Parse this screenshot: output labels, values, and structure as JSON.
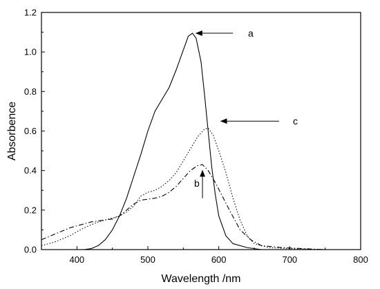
{
  "chart_data": {
    "type": "line",
    "xlabel": "Wavelength /nm",
    "ylabel": "Absorbence",
    "xlim": [
      350,
      800
    ],
    "ylim": [
      0.0,
      1.2
    ],
    "x_ticks": [
      400,
      500,
      600,
      700,
      800
    ],
    "x_tick_labels": [
      "400",
      "500",
      "600",
      "700",
      "800"
    ],
    "y_ticks": [
      0.0,
      0.2,
      0.4,
      0.6,
      0.8,
      1.0,
      1.2
    ],
    "y_tick_labels": [
      "0.0",
      "0.2",
      "0.4",
      "0.6",
      "0.8",
      "1.0",
      "1.2"
    ],
    "grid": false,
    "legend": "none",
    "series": [
      {
        "name": "a",
        "style": "solid",
        "color": "#000000",
        "points": [
          [
            410,
            0.0
          ],
          [
            420,
            0.005
          ],
          [
            430,
            0.02
          ],
          [
            440,
            0.05
          ],
          [
            450,
            0.1
          ],
          [
            460,
            0.17
          ],
          [
            470,
            0.26
          ],
          [
            480,
            0.37
          ],
          [
            490,
            0.48
          ],
          [
            500,
            0.6
          ],
          [
            510,
            0.7
          ],
          [
            520,
            0.76
          ],
          [
            530,
            0.82
          ],
          [
            540,
            0.91
          ],
          [
            550,
            1.01
          ],
          [
            557,
            1.08
          ],
          [
            563,
            1.095
          ],
          [
            568,
            1.07
          ],
          [
            575,
            0.95
          ],
          [
            580,
            0.78
          ],
          [
            585,
            0.6
          ],
          [
            590,
            0.42
          ],
          [
            595,
            0.28
          ],
          [
            600,
            0.17
          ],
          [
            610,
            0.07
          ],
          [
            620,
            0.03
          ],
          [
            640,
            0.01
          ],
          [
            660,
            0.0
          ]
        ]
      },
      {
        "name": "b",
        "style": "dashdot",
        "color": "#000000",
        "points": [
          [
            350,
            0.05
          ],
          [
            370,
            0.08
          ],
          [
            390,
            0.11
          ],
          [
            410,
            0.13
          ],
          [
            420,
            0.14
          ],
          [
            430,
            0.145
          ],
          [
            440,
            0.15
          ],
          [
            450,
            0.155
          ],
          [
            460,
            0.17
          ],
          [
            470,
            0.2
          ],
          [
            480,
            0.23
          ],
          [
            490,
            0.25
          ],
          [
            500,
            0.255
          ],
          [
            510,
            0.26
          ],
          [
            520,
            0.27
          ],
          [
            530,
            0.29
          ],
          [
            540,
            0.32
          ],
          [
            550,
            0.36
          ],
          [
            560,
            0.4
          ],
          [
            570,
            0.425
          ],
          [
            577,
            0.43
          ],
          [
            585,
            0.4
          ],
          [
            595,
            0.34
          ],
          [
            605,
            0.27
          ],
          [
            615,
            0.2
          ],
          [
            630,
            0.1
          ],
          [
            645,
            0.05
          ],
          [
            660,
            0.02
          ],
          [
            690,
            0.01
          ],
          [
            730,
            0.003
          ],
          [
            750,
            0.0
          ]
        ]
      },
      {
        "name": "c",
        "style": "dotted-dashed",
        "color": "#000000",
        "points": [
          [
            350,
            0.02
          ],
          [
            370,
            0.04
          ],
          [
            390,
            0.07
          ],
          [
            410,
            0.11
          ],
          [
            430,
            0.14
          ],
          [
            450,
            0.16
          ],
          [
            460,
            0.17
          ],
          [
            470,
            0.19
          ],
          [
            480,
            0.22
          ],
          [
            490,
            0.27
          ],
          [
            500,
            0.29
          ],
          [
            510,
            0.3
          ],
          [
            520,
            0.32
          ],
          [
            530,
            0.35
          ],
          [
            540,
            0.39
          ],
          [
            550,
            0.45
          ],
          [
            560,
            0.51
          ],
          [
            570,
            0.57
          ],
          [
            580,
            0.61
          ],
          [
            585,
            0.615
          ],
          [
            592,
            0.58
          ],
          [
            600,
            0.5
          ],
          [
            610,
            0.39
          ],
          [
            620,
            0.26
          ],
          [
            630,
            0.15
          ],
          [
            640,
            0.07
          ],
          [
            650,
            0.03
          ],
          [
            670,
            0.01
          ],
          [
            700,
            0.005
          ],
          [
            750,
            0.0
          ]
        ]
      }
    ],
    "annotations": [
      {
        "label": "a",
        "from": [
          620,
          1.095
        ],
        "to": [
          568,
          1.095
        ],
        "text_at": [
          645,
          1.095
        ]
      },
      {
        "label": "c",
        "from": [
          685,
          0.65
        ],
        "to": [
          603,
          0.65
        ],
        "text_at": [
          708,
          0.65
        ]
      },
      {
        "label": "b",
        "from": [
          577,
          0.26
        ],
        "to": [
          577,
          0.4
        ],
        "text_at": [
          569,
          0.335
        ]
      }
    ]
  }
}
